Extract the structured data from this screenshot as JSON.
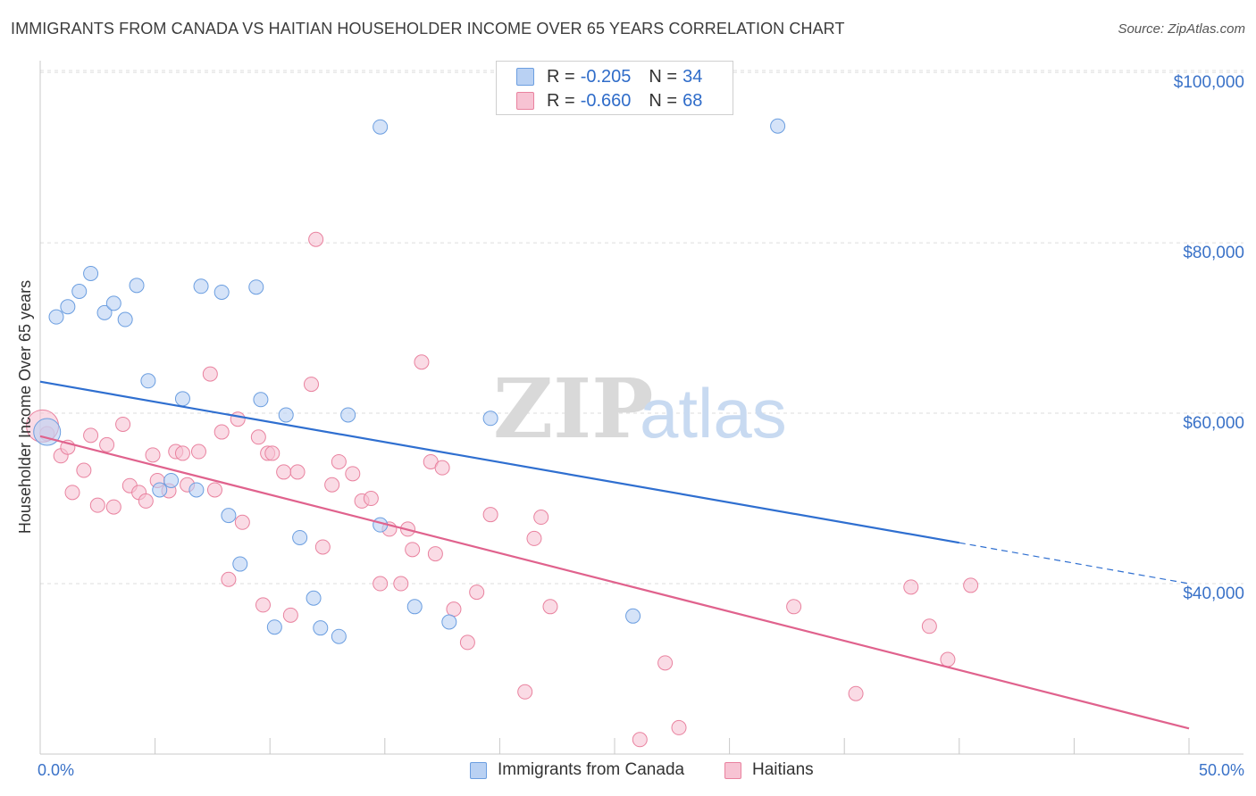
{
  "title": "IMMIGRANTS FROM CANADA VS HAITIAN HOUSEHOLDER INCOME OVER 65 YEARS CORRELATION CHART",
  "source": "Source: ZipAtlas.com",
  "watermark": {
    "zip": "ZIP",
    "atlas": "atlas"
  },
  "colors": {
    "blue_fill": "#b9d1f3",
    "blue_stroke": "#6b9ee0",
    "blue_line": "#2f6fd0",
    "pink_fill": "#f7c3d3",
    "pink_stroke": "#e9829f",
    "pink_line": "#e0628d",
    "axis_text": "#3a72c8"
  },
  "legend": {
    "rows": [
      {
        "r_label": "R =",
        "r_value": "-0.205",
        "n_label": "N =",
        "n_value": "34",
        "color": "blue"
      },
      {
        "r_label": "R =",
        "r_value": "-0.660",
        "n_label": "N =",
        "n_value": "68",
        "color": "pink"
      }
    ]
  },
  "chart_data": {
    "type": "scatter",
    "title": "IMMIGRANTS FROM CANADA VS HAITIAN HOUSEHOLDER INCOME OVER 65 YEARS CORRELATION CHART",
    "xlabel": "",
    "ylabel": "Householder Income Over 65 years",
    "xlim": [
      0,
      50
    ],
    "ylim": [
      20000,
      102000
    ],
    "x_tick_labels": [
      "0.0%",
      "50.0%"
    ],
    "y_ticks": [
      40000,
      60000,
      80000,
      100000
    ],
    "y_tick_labels": [
      "$40,000",
      "$60,000",
      "$80,000",
      "$100,000"
    ],
    "grid": true,
    "legend_position": "top-center",
    "series": [
      {
        "name": "Immigrants from Canada",
        "color": "#6b9ee0",
        "points": [
          [
            0.3,
            57800
          ],
          [
            0.7,
            71300
          ],
          [
            1.2,
            72500
          ],
          [
            1.7,
            74300
          ],
          [
            2.2,
            76400
          ],
          [
            2.8,
            71800
          ],
          [
            3.2,
            72900
          ],
          [
            3.7,
            71000
          ],
          [
            4.2,
            75000
          ],
          [
            4.7,
            63800
          ],
          [
            5.2,
            51000
          ],
          [
            5.7,
            52100
          ],
          [
            6.2,
            61700
          ],
          [
            6.8,
            51000
          ],
          [
            7.0,
            74900
          ],
          [
            7.9,
            74200
          ],
          [
            8.2,
            48000
          ],
          [
            8.7,
            42300
          ],
          [
            9.4,
            74800
          ],
          [
            9.6,
            61600
          ],
          [
            10.2,
            34900
          ],
          [
            10.7,
            59800
          ],
          [
            11.3,
            45400
          ],
          [
            11.9,
            38300
          ],
          [
            12.2,
            34800
          ],
          [
            13.0,
            33800
          ],
          [
            13.4,
            59800
          ],
          [
            14.8,
            46900
          ],
          [
            14.8,
            93600
          ],
          [
            16.3,
            37300
          ],
          [
            17.8,
            35500
          ],
          [
            19.6,
            59400
          ],
          [
            25.8,
            36200
          ],
          [
            32.1,
            93700
          ]
        ]
      },
      {
        "name": "Haitians",
        "color": "#e9829f",
        "points": [
          [
            0.3,
            57600
          ],
          [
            0.9,
            55000
          ],
          [
            1.2,
            56000
          ],
          [
            1.4,
            50700
          ],
          [
            1.9,
            53300
          ],
          [
            2.2,
            57400
          ],
          [
            2.5,
            49200
          ],
          [
            2.9,
            56300
          ],
          [
            3.2,
            49000
          ],
          [
            3.6,
            58700
          ],
          [
            3.9,
            51500
          ],
          [
            4.3,
            50700
          ],
          [
            4.6,
            49700
          ],
          [
            4.9,
            55100
          ],
          [
            5.1,
            52100
          ],
          [
            5.6,
            50900
          ],
          [
            5.9,
            55500
          ],
          [
            6.2,
            55300
          ],
          [
            6.4,
            51600
          ],
          [
            6.9,
            55500
          ],
          [
            7.4,
            64600
          ],
          [
            7.6,
            51000
          ],
          [
            7.9,
            57800
          ],
          [
            8.2,
            40500
          ],
          [
            8.6,
            59300
          ],
          [
            8.8,
            47200
          ],
          [
            9.5,
            57200
          ],
          [
            9.7,
            37500
          ],
          [
            9.9,
            55300
          ],
          [
            10.1,
            55300
          ],
          [
            10.6,
            53100
          ],
          [
            10.9,
            36300
          ],
          [
            11.2,
            53100
          ],
          [
            11.8,
            63400
          ],
          [
            12.0,
            80400
          ],
          [
            12.3,
            44300
          ],
          [
            12.7,
            51600
          ],
          [
            13.0,
            54300
          ],
          [
            13.6,
            52900
          ],
          [
            14.0,
            49700
          ],
          [
            14.4,
            50000
          ],
          [
            14.8,
            40000
          ],
          [
            15.2,
            46400
          ],
          [
            15.7,
            40000
          ],
          [
            16.0,
            46400
          ],
          [
            16.2,
            44000
          ],
          [
            16.6,
            66000
          ],
          [
            17.0,
            54300
          ],
          [
            17.2,
            43500
          ],
          [
            17.5,
            53600
          ],
          [
            18.0,
            37000
          ],
          [
            18.6,
            33100
          ],
          [
            19.0,
            39000
          ],
          [
            19.6,
            48100
          ],
          [
            21.1,
            27300
          ],
          [
            21.5,
            45300
          ],
          [
            21.8,
            47800
          ],
          [
            22.2,
            37300
          ],
          [
            26.1,
            21700
          ],
          [
            27.2,
            30700
          ],
          [
            27.8,
            23100
          ],
          [
            32.8,
            37300
          ],
          [
            35.5,
            27100
          ],
          [
            37.9,
            39600
          ],
          [
            38.7,
            35000
          ],
          [
            39.5,
            31100
          ],
          [
            40.5,
            39800
          ],
          [
            0.1,
            58500
          ]
        ]
      }
    ],
    "trend_lines": [
      {
        "series": "Immigrants from Canada",
        "x": [
          0,
          40,
          50
        ],
        "y": [
          63700,
          44800,
          40000
        ],
        "dashed_from_x": 40
      },
      {
        "series": "Haitians",
        "x": [
          0,
          50
        ],
        "y": [
          57300,
          23000
        ]
      }
    ]
  }
}
